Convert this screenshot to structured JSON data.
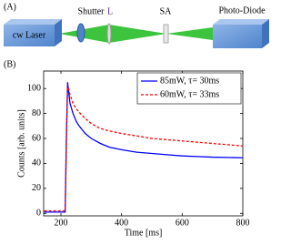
{
  "panels": {
    "a": "(A)",
    "b": "(B)"
  },
  "diagram": {
    "laser": "cw Laser",
    "shutter": "Shutter",
    "lens": "L",
    "absorber": "SA",
    "detector": "Photo-Diode"
  },
  "chart_data": {
    "type": "line",
    "x_label": "Time [ms]",
    "y_label": "Counts [arb. units]",
    "x": [
      145,
      160,
      180,
      200,
      214,
      218,
      222,
      230,
      240,
      250,
      260,
      280,
      300,
      330,
      360,
      400,
      450,
      500,
      550,
      600,
      650,
      700,
      750,
      800
    ],
    "series": [
      {
        "name": "85mW, τ= 30ms",
        "color": "#0000ff",
        "dash": "solid",
        "values": [
          1,
          1,
          1,
          1,
          1,
          60,
          105,
          88,
          80,
          74,
          70,
          64,
          60,
          56,
          53,
          51,
          49,
          48,
          47,
          46,
          45.5,
          45,
          44.8,
          44.5
        ]
      },
      {
        "name": "60mW, τ= 33ms",
        "color": "#ff0000",
        "dash": "dashed",
        "values": [
          2,
          2,
          2,
          2,
          2,
          55,
          103,
          95,
          88,
          84,
          81,
          76,
          72,
          68,
          66,
          64,
          62,
          60,
          59,
          58,
          57,
          56,
          55,
          54
        ]
      }
    ],
    "xlim": [
      143,
      800
    ],
    "ylim": [
      -2,
      114
    ],
    "xticks": [
      200,
      400,
      600,
      800
    ],
    "yticks": [
      0,
      20,
      40,
      60,
      80,
      100
    ],
    "grid": false,
    "legend": "top-right"
  }
}
